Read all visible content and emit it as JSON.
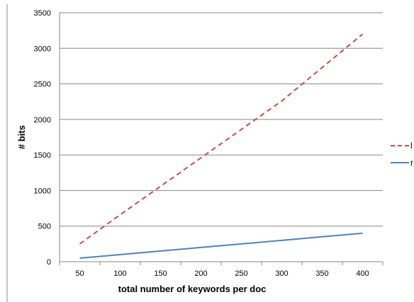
{
  "chart_data": {
    "type": "line",
    "title": "",
    "xlabel": "total number of keywords per doc",
    "ylabel": "# bits",
    "x": [
      50,
      100,
      150,
      200,
      250,
      300,
      350,
      400
    ],
    "xlim": [
      25,
      425
    ],
    "ylim": [
      0,
      3500
    ],
    "y_ticks": [
      0,
      500,
      1000,
      1500,
      2000,
      2500,
      3000,
      3500
    ],
    "grid": "horizontal",
    "legend_position": "right",
    "series": [
      {
        "name": "l",
        "values": [
          250,
          660,
          1060,
          1460,
          1860,
          2260,
          2730,
          3200
        ],
        "color": "#c0504d",
        "style": "dashed"
      },
      {
        "name": "r",
        "values": [
          50,
          100,
          150,
          200,
          250,
          300,
          350,
          400
        ],
        "color": "#4f81bd",
        "style": "solid"
      }
    ],
    "colors": {
      "grid": "#868686",
      "frame": "#868686",
      "text": "#000000"
    }
  }
}
